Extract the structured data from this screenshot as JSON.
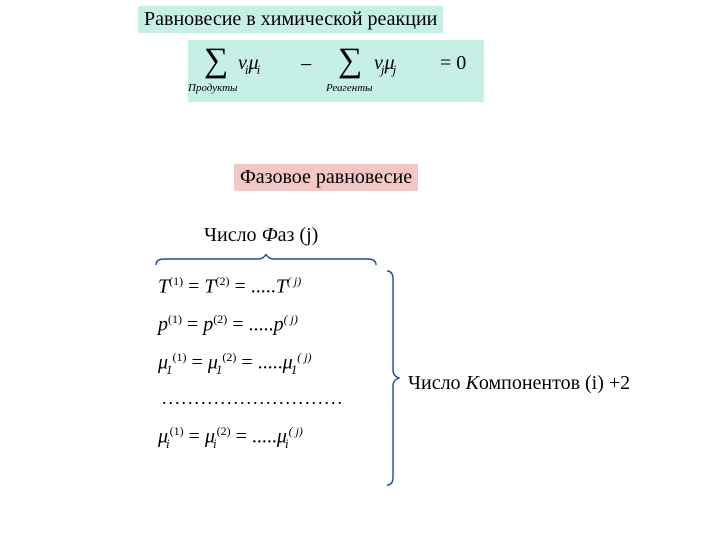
{
  "colors": {
    "bg": "#ffffff",
    "title1_bg": "#c6f0e6",
    "title2_bg": "#f2c8c6",
    "text": "#000000",
    "brace": "#1f4aa0"
  },
  "title1": "Равновесие в химической реакции",
  "title2": "Фазовое равновесие",
  "equation": {
    "sum1_sub": "Продукты",
    "sum1_term_coef": "ν",
    "sum1_term_coef_sub": "i",
    "sum1_term_mu": "μ",
    "sum1_term_mu_sub": "i",
    "op": "−",
    "sum2_sub": "Реагенты",
    "sum2_term_coef": "ν",
    "sum2_term_coef_sub": "j",
    "sum2_term_mu": "μ",
    "sum2_term_mu_sub": "j",
    "rhs": "= 0"
  },
  "phases_label_prefix": "Число ",
  "phases_label_F": "Ф",
  "phases_label_suffix": "аз (j)",
  "components_label_prefix": "Число ",
  "components_label_K": "К",
  "components_label_suffix": "омпонентов (i) +2",
  "system": {
    "rows": [
      {
        "var": "T",
        "sub": "",
        "s1": "(1)",
        "s2": "(2)",
        "sj": "( j)"
      },
      {
        "var": "p",
        "sub": "",
        "s1": "(1)",
        "s2": "(2)",
        "sj": "( j)"
      },
      {
        "var": "μ",
        "sub": "1",
        "s1": "(1)",
        "s2": "(2)",
        "sj": "( j)"
      }
    ],
    "dots": "............................",
    "last": {
      "var": "μ",
      "sub": "i",
      "s1": "(1)",
      "s2": "(2)",
      "sj": "( j)"
    },
    "ellipsis_mid": "= ....."
  }
}
